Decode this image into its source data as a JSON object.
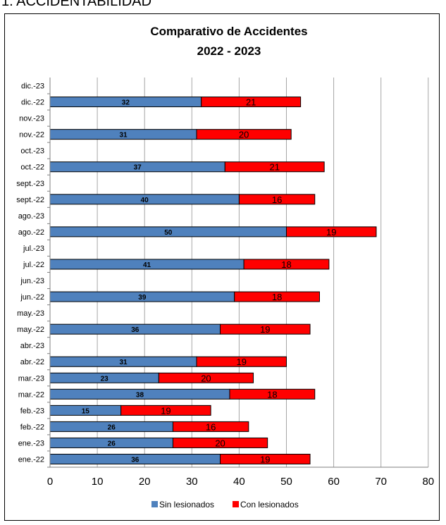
{
  "page": {
    "heading": "1. ACCIDENTABILIDAD"
  },
  "chart_data": {
    "type": "bar",
    "orientation": "horizontal",
    "stacked": true,
    "title": "Comparativo de Accidentes",
    "subtitle": "2022 - 2023",
    "xlim": [
      0,
      80
    ],
    "xticks": [
      0,
      10,
      20,
      30,
      40,
      50,
      60,
      70,
      80
    ],
    "grid": "vertical",
    "legend_position": "bottom",
    "categories": [
      "ene.-22",
      "ene.-23",
      "feb.-22",
      "feb.-23",
      "mar.-22",
      "mar.-23",
      "abr.-22",
      "abr.-23",
      "may.-22",
      "may.-23",
      "jun.-22",
      "jun.-23",
      "jul.-22",
      "jul.-23",
      "ago.-22",
      "ago.-23",
      "sept.-22",
      "sept.-23",
      "oct.-22",
      "oct.-23",
      "nov.-22",
      "nov.-23",
      "dic.-22",
      "dic.-23"
    ],
    "series": [
      {
        "name": "Sin lesionados",
        "color": "#4f81bd",
        "values": [
          36,
          26,
          26,
          15,
          38,
          23,
          31,
          null,
          36,
          null,
          39,
          null,
          41,
          null,
          50,
          null,
          40,
          null,
          37,
          null,
          31,
          null,
          32,
          null
        ]
      },
      {
        "name": "Con lesionados",
        "color": "#ff0000",
        "values": [
          19,
          20,
          16,
          19,
          18,
          20,
          19,
          null,
          19,
          null,
          18,
          null,
          18,
          null,
          19,
          null,
          16,
          null,
          21,
          null,
          20,
          null,
          21,
          null
        ]
      }
    ]
  }
}
